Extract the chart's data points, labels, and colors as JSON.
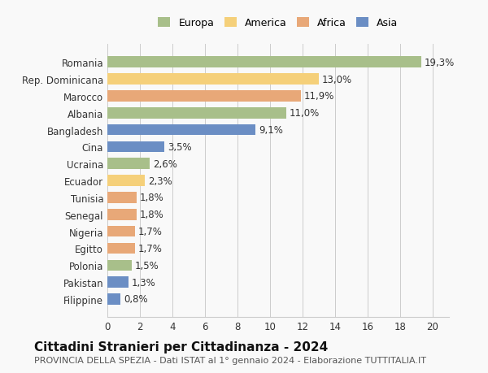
{
  "categories": [
    "Filippine",
    "Pakistan",
    "Polonia",
    "Egitto",
    "Nigeria",
    "Senegal",
    "Tunisia",
    "Ecuador",
    "Ucraina",
    "Cina",
    "Bangladesh",
    "Albania",
    "Marocco",
    "Rep. Dominicana",
    "Romania"
  ],
  "values": [
    0.8,
    1.3,
    1.5,
    1.7,
    1.7,
    1.8,
    1.8,
    2.3,
    2.6,
    3.5,
    9.1,
    11.0,
    11.9,
    13.0,
    19.3
  ],
  "labels": [
    "0,8%",
    "1,3%",
    "1,5%",
    "1,7%",
    "1,7%",
    "1,8%",
    "1,8%",
    "2,3%",
    "2,6%",
    "3,5%",
    "9,1%",
    "11,0%",
    "11,9%",
    "13,0%",
    "19,3%"
  ],
  "continent": [
    "Asia",
    "Asia",
    "Europa",
    "Africa",
    "Africa",
    "Africa",
    "Africa",
    "America",
    "Europa",
    "Asia",
    "Asia",
    "Europa",
    "Africa",
    "America",
    "Europa"
  ],
  "colors": {
    "Europa": "#a8bf8a",
    "America": "#f5d07a",
    "Africa": "#e8a878",
    "Asia": "#6b8ec4"
  },
  "legend_order": [
    "Europa",
    "America",
    "Africa",
    "Asia"
  ],
  "title": "Cittadini Stranieri per Cittadinanza - 2024",
  "subtitle": "PROVINCIA DELLA SPEZIA - Dati ISTAT al 1° gennaio 2024 - Elaborazione TUTTITALIA.IT",
  "xlim": [
    0,
    21
  ],
  "xticks": [
    0,
    2,
    4,
    6,
    8,
    10,
    12,
    14,
    16,
    18,
    20
  ],
  "background_color": "#f9f9f9",
  "grid_color": "#cccccc",
  "bar_height": 0.65,
  "title_fontsize": 11,
  "subtitle_fontsize": 8,
  "tick_fontsize": 8.5,
  "label_fontsize": 8.5,
  "legend_fontsize": 9
}
